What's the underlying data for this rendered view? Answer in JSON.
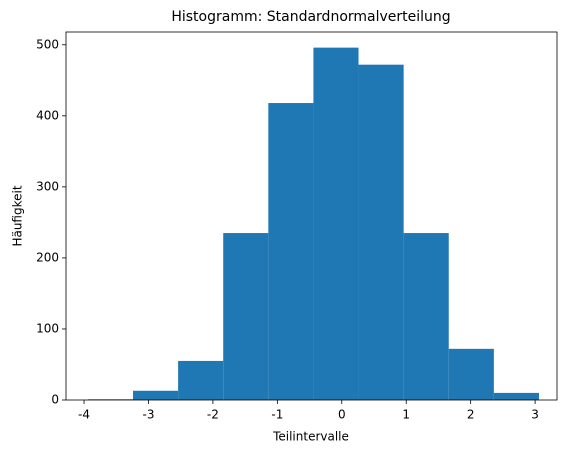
{
  "chart_data": {
    "type": "histogram",
    "title": "Histogramm: Standardnormalverteilung",
    "x_label": "Teilintervalle",
    "y_label": "Häufigkeit",
    "bins": [
      -3.94,
      -3.24,
      -2.54,
      -1.84,
      -1.14,
      -0.44,
      0.26,
      0.96,
      1.66,
      2.36,
      3.06
    ],
    "values": [
      1,
      13,
      55,
      235,
      418,
      496,
      472,
      235,
      72,
      10
    ],
    "color": "#1f77b4",
    "xlim": [
      -4.28,
      3.34
    ],
    "xticks": [
      -4,
      -3,
      -2,
      -1,
      0,
      1,
      2,
      3
    ],
    "ylim": [
      0,
      518
    ],
    "yticks": [
      0,
      100,
      200,
      300,
      400,
      500
    ]
  }
}
